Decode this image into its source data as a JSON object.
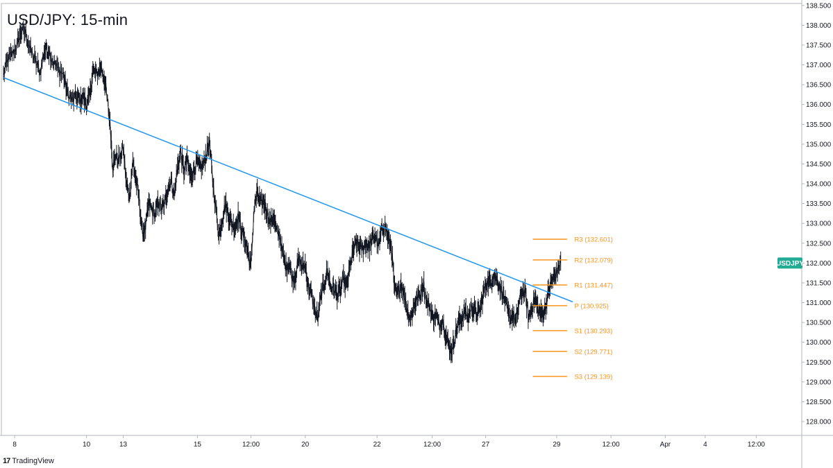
{
  "title": "USD/JPY: 15-min",
  "brand": {
    "logo": "17",
    "name": "TradingView"
  },
  "symbol_badge": {
    "text": "USDJPY",
    "price": 132.0,
    "color": "#22ab94"
  },
  "colors": {
    "price_line": "#131722",
    "trendline": "#2196f3",
    "pivot": "#f7941d",
    "axis_text": "#131722",
    "axis_border": "#b2b5be"
  },
  "chart_data": {
    "type": "line",
    "title": "USD/JPY: 15-min",
    "xlabel": "",
    "ylabel": "",
    "ylim": [
      127.65,
      138.55
    ],
    "grid": false,
    "y_ticks": [
      "128.000",
      "128.500",
      "129.000",
      "129.500",
      "130.000",
      "130.500",
      "131.000",
      "131.500",
      "132.000",
      "132.500",
      "133.000",
      "133.500",
      "134.000",
      "134.500",
      "135.000",
      "135.500",
      "136.000",
      "136.500",
      "137.000",
      "137.500",
      "138.000",
      "138.500"
    ],
    "x_ticks": [
      {
        "label": "8",
        "t": 0.014
      },
      {
        "label": "10",
        "t": 0.104
      },
      {
        "label": "13",
        "t": 0.15
      },
      {
        "label": "15",
        "t": 0.243
      },
      {
        "label": "12:00",
        "t": 0.31
      },
      {
        "label": "20",
        "t": 0.378
      },
      {
        "label": "22",
        "t": 0.468
      },
      {
        "label": "12:00",
        "t": 0.537
      },
      {
        "label": "27",
        "t": 0.604
      },
      {
        "label": "29",
        "t": 0.693
      },
      {
        "label": "12:00",
        "t": 0.761
      },
      {
        "label": "Apr",
        "t": 0.829
      },
      {
        "label": "4",
        "t": 0.879
      },
      {
        "label": "12:00",
        "t": 0.943
      }
    ],
    "series": [
      {
        "price_keypoints": [
          [
            0.0,
            136.75
          ],
          [
            0.006,
            137.15
          ],
          [
            0.012,
            137.3
          ],
          [
            0.018,
            137.55
          ],
          [
            0.022,
            137.85
          ],
          [
            0.028,
            137.8
          ],
          [
            0.034,
            137.35
          ],
          [
            0.04,
            137.1
          ],
          [
            0.046,
            136.8
          ],
          [
            0.051,
            137.35
          ],
          [
            0.056,
            137.4
          ],
          [
            0.062,
            137.1
          ],
          [
            0.068,
            136.9
          ],
          [
            0.075,
            136.75
          ],
          [
            0.08,
            136.3
          ],
          [
            0.086,
            136.1
          ],
          [
            0.092,
            136.2
          ],
          [
            0.096,
            136.1
          ],
          [
            0.1,
            136.2
          ],
          [
            0.104,
            136.0
          ],
          [
            0.108,
            136.2
          ],
          [
            0.112,
            136.85
          ],
          [
            0.117,
            136.75
          ],
          [
            0.122,
            136.95
          ],
          [
            0.127,
            136.6
          ],
          [
            0.131,
            135.95
          ],
          [
            0.134,
            135.4
          ],
          [
            0.137,
            134.4
          ],
          [
            0.14,
            134.7
          ],
          [
            0.145,
            134.6
          ],
          [
            0.15,
            134.9
          ],
          [
            0.154,
            134.0
          ],
          [
            0.158,
            133.7
          ],
          [
            0.162,
            134.55
          ],
          [
            0.166,
            134.1
          ],
          [
            0.17,
            133.6
          ],
          [
            0.174,
            132.75
          ],
          [
            0.178,
            132.9
          ],
          [
            0.182,
            133.5
          ],
          [
            0.186,
            133.35
          ],
          [
            0.19,
            133.2
          ],
          [
            0.194,
            133.55
          ],
          [
            0.198,
            133.35
          ],
          [
            0.202,
            133.5
          ],
          [
            0.206,
            133.9
          ],
          [
            0.21,
            134.1
          ],
          [
            0.214,
            133.7
          ],
          [
            0.218,
            134.4
          ],
          [
            0.222,
            134.8
          ],
          [
            0.226,
            134.3
          ],
          [
            0.23,
            134.6
          ],
          [
            0.234,
            134.2
          ],
          [
            0.238,
            134.3
          ],
          [
            0.242,
            134.55
          ],
          [
            0.246,
            134.4
          ],
          [
            0.25,
            134.45
          ],
          [
            0.254,
            134.75
          ],
          [
            0.258,
            135.05
          ],
          [
            0.262,
            134.1
          ],
          [
            0.266,
            133.4
          ],
          [
            0.27,
            132.7
          ],
          [
            0.274,
            133.1
          ],
          [
            0.278,
            133.5
          ],
          [
            0.282,
            133.2
          ],
          [
            0.286,
            133.0
          ],
          [
            0.29,
            132.9
          ],
          [
            0.294,
            133.2
          ],
          [
            0.298,
            132.85
          ],
          [
            0.302,
            132.6
          ],
          [
            0.306,
            132.3
          ],
          [
            0.31,
            131.9
          ],
          [
            0.314,
            133.4
          ],
          [
            0.318,
            133.75
          ],
          [
            0.322,
            133.5
          ],
          [
            0.326,
            133.55
          ],
          [
            0.33,
            133.3
          ],
          [
            0.334,
            133.0
          ],
          [
            0.338,
            133.2
          ],
          [
            0.342,
            132.8
          ],
          [
            0.346,
            132.7
          ],
          [
            0.35,
            132.2
          ],
          [
            0.354,
            131.9
          ],
          [
            0.358,
            132.0
          ],
          [
            0.362,
            131.6
          ],
          [
            0.366,
            131.7
          ],
          [
            0.37,
            132.1
          ],
          [
            0.374,
            131.9
          ],
          [
            0.378,
            131.95
          ],
          [
            0.382,
            131.4
          ],
          [
            0.386,
            131.2
          ],
          [
            0.39,
            130.8
          ],
          [
            0.394,
            130.6
          ],
          [
            0.398,
            131.2
          ],
          [
            0.402,
            131.5
          ],
          [
            0.406,
            131.8
          ],
          [
            0.41,
            131.4
          ],
          [
            0.414,
            131.35
          ],
          [
            0.418,
            131.2
          ],
          [
            0.422,
            131.3
          ],
          [
            0.426,
            131.6
          ],
          [
            0.43,
            131.4
          ],
          [
            0.434,
            131.9
          ],
          [
            0.438,
            132.3
          ],
          [
            0.442,
            132.5
          ],
          [
            0.446,
            132.4
          ],
          [
            0.45,
            132.35
          ],
          [
            0.454,
            132.5
          ],
          [
            0.458,
            132.4
          ],
          [
            0.462,
            132.6
          ],
          [
            0.466,
            132.7
          ],
          [
            0.47,
            132.4
          ],
          [
            0.474,
            132.85
          ],
          [
            0.478,
            132.95
          ],
          [
            0.482,
            132.6
          ],
          [
            0.486,
            132.4
          ],
          [
            0.49,
            131.3
          ],
          [
            0.494,
            131.2
          ],
          [
            0.498,
            131.5
          ],
          [
            0.502,
            131.2
          ],
          [
            0.506,
            130.8
          ],
          [
            0.51,
            130.6
          ],
          [
            0.514,
            130.9
          ],
          [
            0.518,
            131.1
          ],
          [
            0.522,
            131.2
          ],
          [
            0.526,
            131.5
          ],
          [
            0.53,
            131.0
          ],
          [
            0.534,
            130.9
          ],
          [
            0.538,
            130.6
          ],
          [
            0.542,
            130.7
          ],
          [
            0.546,
            130.4
          ],
          [
            0.55,
            130.6
          ],
          [
            0.554,
            130.2
          ],
          [
            0.558,
            129.9
          ],
          [
            0.562,
            129.8
          ],
          [
            0.566,
            130.2
          ],
          [
            0.57,
            130.5
          ],
          [
            0.574,
            130.6
          ],
          [
            0.578,
            130.8
          ],
          [
            0.582,
            130.6
          ],
          [
            0.586,
            130.9
          ],
          [
            0.59,
            130.8
          ],
          [
            0.594,
            130.7
          ],
          [
            0.598,
            130.9
          ],
          [
            0.602,
            131.3
          ],
          [
            0.606,
            131.55
          ],
          [
            0.61,
            131.5
          ],
          [
            0.614,
            131.7
          ],
          [
            0.618,
            131.6
          ],
          [
            0.622,
            131.4
          ],
          [
            0.626,
            131.2
          ],
          [
            0.63,
            130.9
          ],
          [
            0.634,
            130.6
          ],
          [
            0.638,
            130.7
          ],
          [
            0.642,
            130.5
          ],
          [
            0.646,
            131.0
          ],
          [
            0.65,
            131.3
          ],
          [
            0.654,
            131.2
          ],
          [
            0.658,
            130.6
          ],
          [
            0.662,
            130.9
          ],
          [
            0.666,
            131.1
          ],
          [
            0.67,
            130.8
          ],
          [
            0.674,
            130.7
          ],
          [
            0.678,
            130.8
          ],
          [
            0.682,
            131.2
          ],
          [
            0.686,
            131.5
          ],
          [
            0.69,
            131.65
          ],
          [
            0.694,
            131.8
          ],
          [
            0.698,
            132.05
          ]
        ],
        "trendline": {
          "from": [
            0.0,
            136.68
          ],
          "to": [
            0.713,
            131.02
          ]
        }
      }
    ],
    "pivot_levels": [
      {
        "label": "R3 (132.601)",
        "value": 132.601
      },
      {
        "label": "R2 (132.079)",
        "value": 132.079
      },
      {
        "label": "R1 (131.447)",
        "value": 131.447
      },
      {
        "label": "P (130.925)",
        "value": 130.925
      },
      {
        "label": "S1 (130.293)",
        "value": 130.293
      },
      {
        "label": "S2 (129.771)",
        "value": 129.771
      },
      {
        "label": "S3 (129.139)",
        "value": 129.139
      }
    ],
    "pivot_range_t": [
      0.663,
      0.706
    ]
  }
}
